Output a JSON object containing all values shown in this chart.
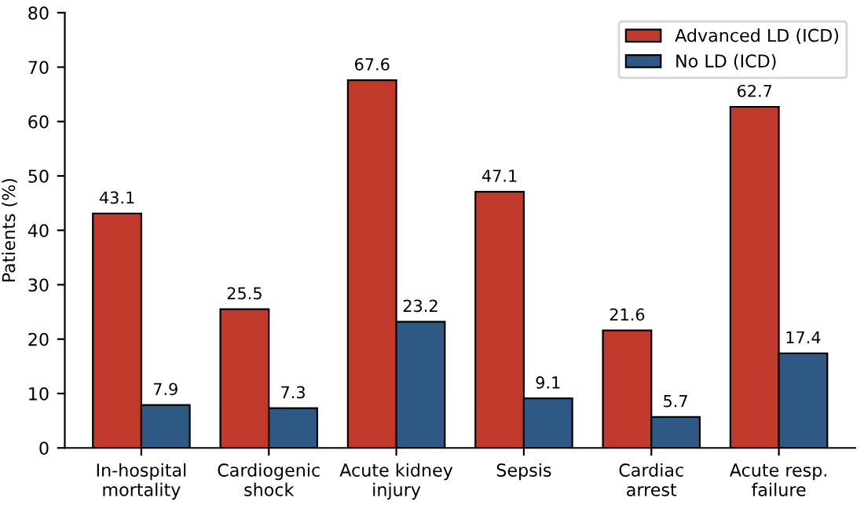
{
  "chart_data": {
    "type": "bar",
    "ylabel": "Patients (%)",
    "categories": [
      "In-hospital\nmortality",
      "Cardiogenic\nshock",
      "Acute kidney\ninjury",
      "Sepsis",
      "Cardiac\narrest",
      "Acute resp.\nfailure"
    ],
    "series": [
      {
        "name": "Advanced LD (ICD)",
        "color": "#c0392b",
        "values": [
          43.1,
          25.5,
          67.6,
          47.1,
          21.6,
          62.7
        ]
      },
      {
        "name": "No LD (ICD)",
        "color": "#2e5984",
        "values": [
          7.9,
          7.3,
          23.2,
          9.1,
          5.7,
          17.4
        ]
      }
    ],
    "ylim": [
      0,
      80
    ],
    "yticks": [
      0,
      10,
      20,
      30,
      40,
      50,
      60,
      70,
      80
    ],
    "grid": false,
    "legend": "top right",
    "data_labels": true
  }
}
